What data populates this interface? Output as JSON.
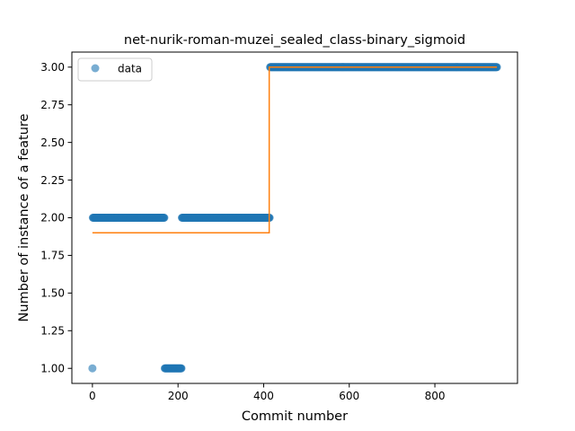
{
  "chart_data": {
    "type": "scatter",
    "title": "net-nurik-roman-muzei_sealed_class-binary_sigmoid",
    "xlabel": "Commit number",
    "ylabel": "Number of instance of a feature",
    "xlim": [
      -48,
      993
    ],
    "ylim": [
      0.9,
      3.1
    ],
    "xticks": [
      0,
      200,
      400,
      600,
      800
    ],
    "xtick_labels": [
      "0",
      "200",
      "400",
      "600",
      "800"
    ],
    "yticks": [
      1.0,
      1.25,
      1.5,
      1.75,
      2.0,
      2.25,
      2.5,
      2.75,
      3.0
    ],
    "ytick_labels": [
      "1.00",
      "1.25",
      "1.50",
      "1.75",
      "2.00",
      "2.25",
      "2.50",
      "2.75",
      "3.00"
    ],
    "grid": false,
    "legend": {
      "position": "upper-left",
      "entries": [
        "data"
      ]
    },
    "series": [
      {
        "name": "data",
        "kind": "points",
        "color": "#1f77b4",
        "segments": [
          {
            "x_start": 0,
            "x_end": 0,
            "y": 1
          },
          {
            "x_start": 1,
            "x_end": 168,
            "y": 2
          },
          {
            "x_start": 169,
            "x_end": 208,
            "y": 1
          },
          {
            "x_start": 209,
            "x_end": 414,
            "y": 2
          },
          {
            "x_start": 415,
            "x_end": 945,
            "y": 3
          }
        ]
      },
      {
        "kind": "step-line",
        "color": "#ff7f0e",
        "x": [
          0,
          413,
          413,
          945
        ],
        "y": [
          1.9,
          1.9,
          3.0,
          3.0
        ]
      }
    ]
  }
}
